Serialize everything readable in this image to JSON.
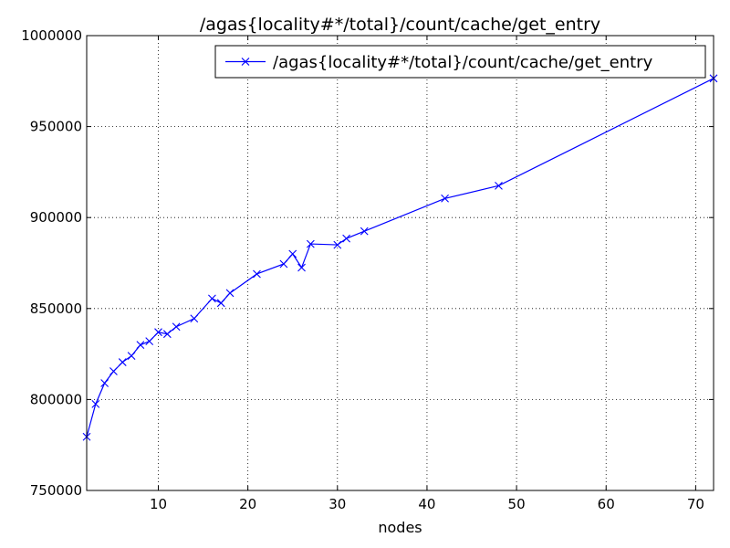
{
  "chart_data": {
    "type": "line",
    "title": "/agas{locality#*/total}/count/cache/get_entry",
    "xlabel": "nodes",
    "ylabel": "",
    "xlim": [
      2,
      72
    ],
    "ylim": [
      750000,
      1000000
    ],
    "xticks": [
      10,
      20,
      30,
      40,
      50,
      60,
      70
    ],
    "yticks": [
      750000,
      800000,
      850000,
      900000,
      950000,
      1000000
    ],
    "grid": true,
    "legend_position": "top-right",
    "series": [
      {
        "name": "/agas{locality#*/total}/count/cache/get_entry",
        "color": "#0000ff",
        "marker": "x",
        "x": [
          2,
          3,
          4,
          5,
          6,
          7,
          8,
          9,
          10,
          11,
          12,
          14,
          16,
          17,
          18,
          21,
          24,
          25,
          26,
          27,
          30,
          31,
          33,
          42,
          48,
          72
        ],
        "y": [
          779500,
          797500,
          809000,
          815500,
          820500,
          824000,
          830000,
          832000,
          837000,
          836000,
          840000,
          844500,
          855500,
          853000,
          858500,
          869000,
          874500,
          880000,
          872500,
          885500,
          885000,
          888500,
          892500,
          910500,
          917500,
          976500
        ]
      }
    ]
  }
}
